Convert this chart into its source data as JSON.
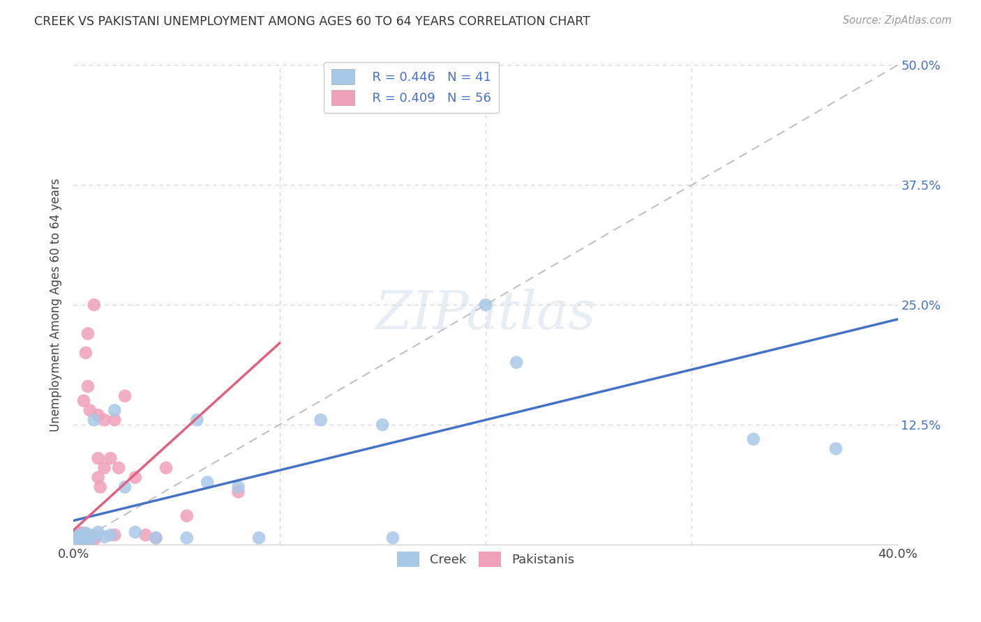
{
  "title": "CREEK VS PAKISTANI UNEMPLOYMENT AMONG AGES 60 TO 64 YEARS CORRELATION CHART",
  "source": "Source: ZipAtlas.com",
  "ylabel": "Unemployment Among Ages 60 to 64 years",
  "xlim": [
    0.0,
    0.4
  ],
  "ylim": [
    0.0,
    0.5
  ],
  "creek_R": 0.446,
  "creek_N": 41,
  "pakistani_R": 0.409,
  "pakistani_N": 56,
  "creek_color": "#a8c8e8",
  "pakistani_color": "#f0a0b8",
  "creek_line_color": "#4472c4",
  "pakistani_line_color": "#e06080",
  "diagonal_color": "#c0c0c8",
  "background_color": "#ffffff",
  "grid_color": "#d0d0e0",
  "creek_line_x": [
    0.0,
    0.4
  ],
  "creek_line_y": [
    0.025,
    0.235
  ],
  "pakistani_line_x": [
    0.0,
    0.1
  ],
  "pakistani_line_y": [
    0.015,
    0.21
  ],
  "creek_x": [
    0.001,
    0.001,
    0.002,
    0.002,
    0.002,
    0.003,
    0.003,
    0.003,
    0.004,
    0.004,
    0.004,
    0.005,
    0.005,
    0.005,
    0.006,
    0.006,
    0.007,
    0.007,
    0.008,
    0.008,
    0.009,
    0.01,
    0.012,
    0.015,
    0.018,
    0.02,
    0.025,
    0.03,
    0.04,
    0.055,
    0.06,
    0.065,
    0.08,
    0.09,
    0.12,
    0.15,
    0.155,
    0.2,
    0.215,
    0.33,
    0.37
  ],
  "creek_y": [
    0.005,
    0.008,
    0.003,
    0.006,
    0.01,
    0.005,
    0.008,
    0.003,
    0.006,
    0.01,
    0.003,
    0.007,
    0.01,
    0.005,
    0.006,
    0.012,
    0.005,
    0.008,
    0.01,
    0.006,
    0.008,
    0.13,
    0.013,
    0.008,
    0.01,
    0.14,
    0.06,
    0.013,
    0.007,
    0.007,
    0.13,
    0.065,
    0.06,
    0.007,
    0.13,
    0.125,
    0.007,
    0.25,
    0.19,
    0.11,
    0.1
  ],
  "pakistani_x": [
    0.001,
    0.001,
    0.001,
    0.002,
    0.002,
    0.002,
    0.002,
    0.003,
    0.003,
    0.003,
    0.003,
    0.003,
    0.004,
    0.004,
    0.004,
    0.004,
    0.004,
    0.005,
    0.005,
    0.005,
    0.005,
    0.005,
    0.005,
    0.006,
    0.006,
    0.006,
    0.006,
    0.007,
    0.007,
    0.007,
    0.007,
    0.008,
    0.008,
    0.008,
    0.009,
    0.01,
    0.01,
    0.01,
    0.011,
    0.012,
    0.012,
    0.012,
    0.013,
    0.015,
    0.015,
    0.018,
    0.02,
    0.02,
    0.022,
    0.025,
    0.03,
    0.035,
    0.04,
    0.045,
    0.055,
    0.08
  ],
  "pakistani_y": [
    0.003,
    0.005,
    0.008,
    0.003,
    0.005,
    0.008,
    0.01,
    0.003,
    0.005,
    0.007,
    0.01,
    0.012,
    0.003,
    0.005,
    0.007,
    0.01,
    0.012,
    0.003,
    0.005,
    0.007,
    0.009,
    0.012,
    0.15,
    0.003,
    0.005,
    0.008,
    0.2,
    0.003,
    0.005,
    0.165,
    0.22,
    0.005,
    0.008,
    0.14,
    0.007,
    0.005,
    0.008,
    0.25,
    0.009,
    0.135,
    0.09,
    0.07,
    0.06,
    0.08,
    0.13,
    0.09,
    0.01,
    0.13,
    0.08,
    0.155,
    0.07,
    0.01,
    0.007,
    0.08,
    0.03,
    0.055
  ]
}
